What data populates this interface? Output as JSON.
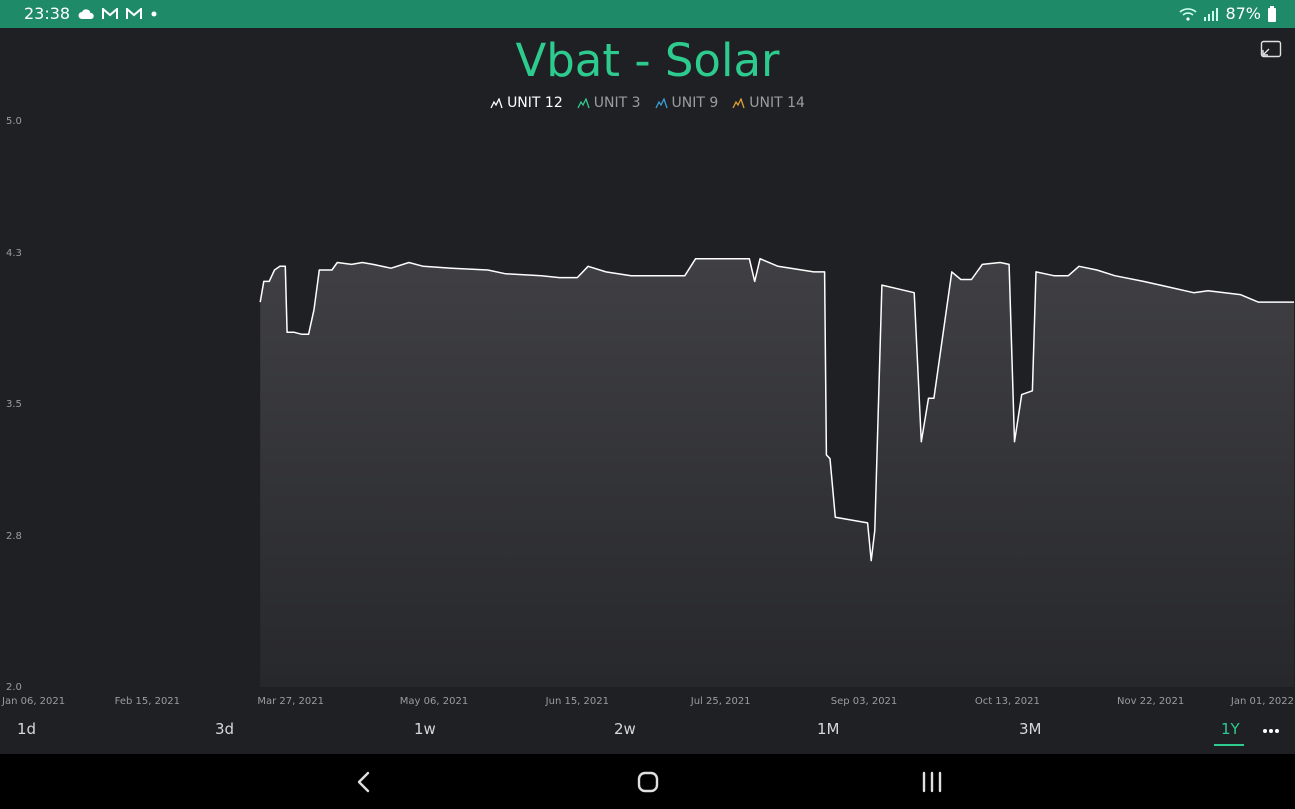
{
  "status_bar": {
    "time": "23:38",
    "battery": "87%",
    "icons": [
      "cloud-icon",
      "gmail-icon",
      "gmail-icon",
      "dot-icon",
      "wifi-icon",
      "signal-icon",
      "battery-icon"
    ]
  },
  "widget": {
    "title": "Vbat - Solar",
    "fullscreen_icon": "fullscreen-exit-icon",
    "legend": [
      {
        "label": "UNIT 12",
        "color": "#ffffff",
        "active": true
      },
      {
        "label": "UNIT 3",
        "color": "#2ecb8f",
        "active": false
      },
      {
        "label": "UNIT 9",
        "color": "#3a9fd8",
        "active": false
      },
      {
        "label": "UNIT 14",
        "color": "#e0a030",
        "active": false
      }
    ]
  },
  "chart_data": {
    "type": "area",
    "title": "Vbat - Solar",
    "xlabel": "",
    "ylabel": "",
    "ylim": [
      2.0,
      5.0
    ],
    "y_ticks": [
      "5.0",
      "4.3",
      "3.5",
      "2.8",
      "2.0"
    ],
    "x_ticks": [
      "Jan 06, 2021",
      "Feb 15, 2021",
      "Mar 27, 2021",
      "May 06, 2021",
      "Jun 15, 2021",
      "Jul 25, 2021",
      "Sep 03, 2021",
      "Oct 13, 2021",
      "Nov 22, 2021",
      "Jan 01, 2022"
    ],
    "x_range_days": [
      0,
      360
    ],
    "grid": false,
    "legend_position": "top",
    "series": [
      {
        "name": "UNIT 12",
        "color": "#ffffff",
        "points": [
          [
            71.5,
            4.04
          ],
          [
            72.5,
            4.15
          ],
          [
            74,
            4.15
          ],
          [
            75.5,
            4.21
          ],
          [
            77,
            4.23
          ],
          [
            78.5,
            4.23
          ],
          [
            79,
            3.88
          ],
          [
            81,
            3.88
          ],
          [
            83,
            3.87
          ],
          [
            85,
            3.87
          ],
          [
            86.5,
            4.0
          ],
          [
            88,
            4.21
          ],
          [
            91.5,
            4.21
          ],
          [
            93,
            4.25
          ],
          [
            97,
            4.24
          ],
          [
            100,
            4.25
          ],
          [
            103,
            4.24
          ],
          [
            108,
            4.22
          ],
          [
            113,
            4.25
          ],
          [
            117,
            4.23
          ],
          [
            125,
            4.22
          ],
          [
            135,
            4.21
          ],
          [
            140,
            4.19
          ],
          [
            150,
            4.18
          ],
          [
            155,
            4.17
          ],
          [
            160,
            4.17
          ],
          [
            163,
            4.23
          ],
          [
            168,
            4.2
          ],
          [
            175,
            4.18
          ],
          [
            185,
            4.18
          ],
          [
            190,
            4.18
          ],
          [
            193,
            4.27
          ],
          [
            198,
            4.27
          ],
          [
            205,
            4.27
          ],
          [
            208,
            4.27
          ],
          [
            209.5,
            4.15
          ],
          [
            211,
            4.27
          ],
          [
            216,
            4.23
          ],
          [
            226,
            4.2
          ],
          [
            229,
            4.2
          ],
          [
            229.5,
            3.23
          ],
          [
            230.5,
            3.21
          ],
          [
            232,
            2.9
          ],
          [
            241,
            2.87
          ],
          [
            242,
            2.67
          ],
          [
            243,
            2.83
          ],
          [
            245,
            4.13
          ],
          [
            254,
            4.09
          ],
          [
            256,
            3.3
          ],
          [
            258,
            3.53
          ],
          [
            259.5,
            3.53
          ],
          [
            264.5,
            4.2
          ],
          [
            267,
            4.16
          ],
          [
            270,
            4.16
          ],
          [
            273,
            4.24
          ],
          [
            278,
            4.25
          ],
          [
            280.5,
            4.24
          ],
          [
            282,
            3.3
          ],
          [
            284,
            3.55
          ],
          [
            285.5,
            3.56
          ],
          [
            287,
            3.57
          ],
          [
            288,
            4.2
          ],
          [
            293,
            4.18
          ],
          [
            297,
            4.18
          ],
          [
            300,
            4.23
          ],
          [
            305,
            4.21
          ],
          [
            310,
            4.18
          ],
          [
            318,
            4.15
          ],
          [
            325,
            4.12
          ],
          [
            332,
            4.09
          ],
          [
            336,
            4.1
          ],
          [
            345,
            4.08
          ],
          [
            350,
            4.04
          ],
          [
            355,
            4.04
          ],
          [
            360,
            4.04
          ]
        ]
      }
    ]
  },
  "range_tabs": [
    {
      "label": "1d",
      "selected": false
    },
    {
      "label": "3d",
      "selected": false
    },
    {
      "label": "1w",
      "selected": false
    },
    {
      "label": "2w",
      "selected": false
    },
    {
      "label": "1M",
      "selected": false
    },
    {
      "label": "3M",
      "selected": false
    },
    {
      "label": "1Y",
      "selected": true
    }
  ],
  "more_icon": "more-horizontal-icon",
  "nav_bar": [
    "back-icon",
    "home-icon",
    "recents-icon"
  ]
}
